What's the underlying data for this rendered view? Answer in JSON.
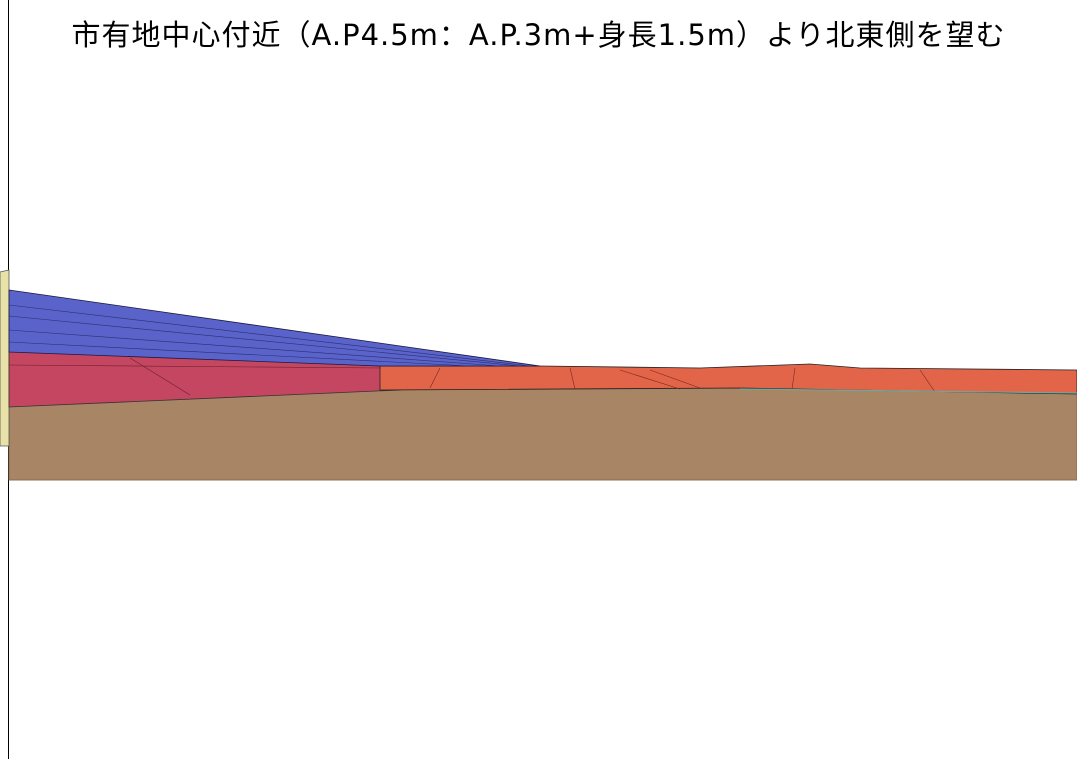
{
  "caption": {
    "title": "市有地中心付近（A.P4.5m：A.P.3m+身長1.5m）より北東側を望む"
  },
  "palette": {
    "ground": "#A88565",
    "blue_structure": "#5A63C9",
    "red_structure": "#C54660",
    "orange_structure": "#E2654A",
    "yellow_structure": "#E8E2A8",
    "teal_edge": "#6FA89A",
    "outline": "#1A1A1A"
  }
}
